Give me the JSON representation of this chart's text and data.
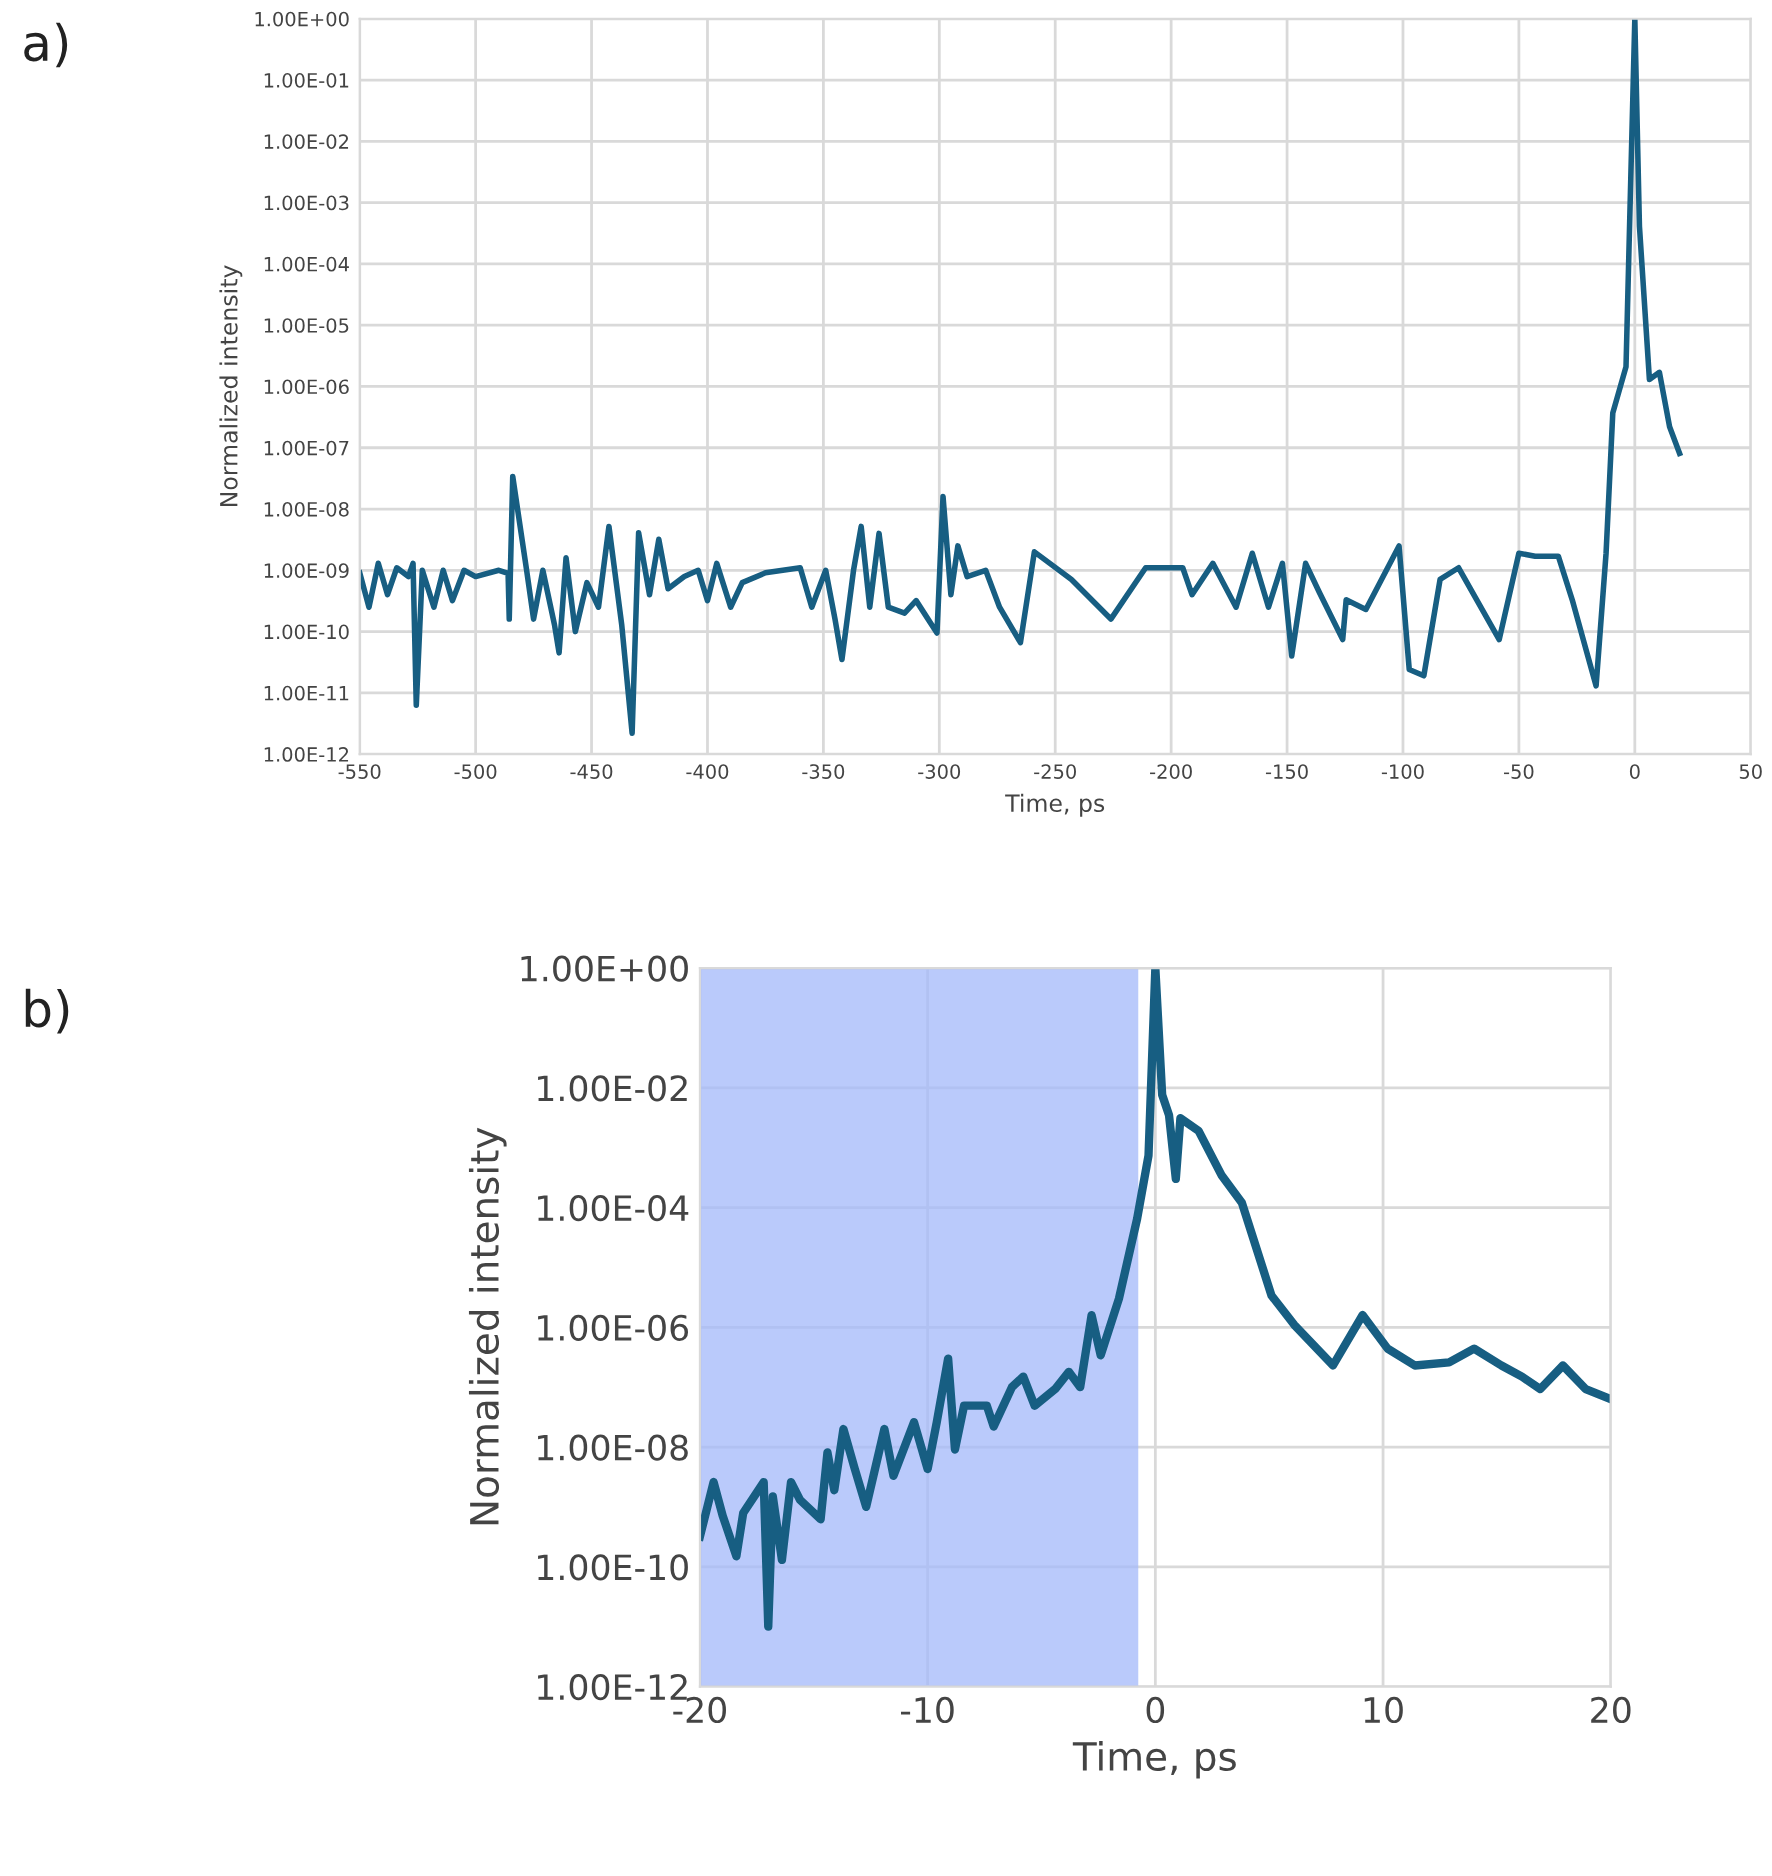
{
  "chart_data": [
    {
      "type": "line",
      "xlabel": "Time, ps",
      "ylabel": "Normalized intensity",
      "annotations": [
        "a)"
      ],
      "log": "y",
      "grid": true,
      "legend": false,
      "marker": "none",
      "line_style": "solid",
      "xlim": [
        -550,
        50
      ],
      "xticks": [
        -550,
        -500,
        -450,
        -400,
        -350,
        -300,
        -250,
        -200,
        -150,
        -100,
        -50,
        0,
        50
      ],
      "ylim": [
        1e-12,
        1
      ],
      "yticks": [
        {
          "value": 1,
          "label": "1.00E+00"
        },
        {
          "value": 0.1,
          "label": "1.00E-01"
        },
        {
          "value": 0.01,
          "label": "1.00E-02"
        },
        {
          "value": 0.001,
          "label": "1.00E-03"
        },
        {
          "value": 0.0001,
          "label": "1.00E-04"
        },
        {
          "value": 1e-05,
          "label": "1.00E-05"
        },
        {
          "value": 1e-06,
          "label": "1.00E-06"
        },
        {
          "value": 1e-07,
          "label": "1.00E-07"
        },
        {
          "value": 1e-08,
          "label": "1.00E-08"
        },
        {
          "value": 1e-09,
          "label": "1.00E-09"
        },
        {
          "value": 1e-10,
          "label": "1.00E-10"
        },
        {
          "value": 1e-11,
          "label": "1.00E-11"
        },
        {
          "value": 1e-12,
          "label": "1.00E-12"
        }
      ],
      "series": [
        {
          "color": "#175e82",
          "x": [
            -550,
            -546,
            -542,
            -538,
            -534,
            -529,
            -527,
            -525.6,
            -523,
            -518,
            -514,
            -510,
            -505,
            -500,
            -490,
            -486,
            -485.5,
            -484,
            -478,
            -475,
            -471,
            -466,
            -464,
            -461,
            -457,
            -452,
            -447,
            -442.5,
            -437,
            -432.5,
            -429.7,
            -425,
            -421,
            -417,
            -410,
            -404,
            -400,
            -396,
            -390,
            -385,
            -375,
            -360,
            -355,
            -349,
            -345,
            -342,
            -337,
            -333.7,
            -330,
            -326,
            -322,
            -315,
            -310,
            -301,
            -298.4,
            -295,
            -292,
            -288,
            -280,
            -274,
            -265,
            -259,
            -243,
            -226,
            -211,
            -195,
            -191,
            -182,
            -172,
            -165,
            -158,
            -152,
            -148,
            -142,
            -136,
            -126,
            -124.5,
            -116,
            -101.7,
            -97.3,
            -91,
            -84,
            -76,
            -58.5,
            -50,
            -43,
            -33,
            -27,
            -16.7,
            -12.4,
            -9.5,
            -3.8,
            0,
            2,
            6.3,
            10.6,
            15,
            19.3
          ],
          "values": [
            9.1e-10,
            2.5e-10,
            1.3e-09,
            4e-10,
            1.1e-09,
            7.9e-10,
            1.3e-09,
            6.3e-12,
            1e-09,
            2.5e-10,
            1e-09,
            3.2e-10,
            1e-09,
            7.9e-10,
            1e-09,
            8.9e-10,
            1.6e-10,
            3.4e-08,
            1e-09,
            1.6e-10,
            1e-09,
            1.3e-10,
            4.5e-11,
            1.6e-09,
            1e-10,
            6.3e-10,
            2.5e-10,
            5.2e-09,
            1.3e-10,
            2.2e-12,
            4.1e-09,
            4e-10,
            3.2e-09,
            5e-10,
            7.9e-10,
            1e-09,
            3.2e-10,
            1.3e-09,
            2.5e-10,
            6.3e-10,
            9.1e-10,
            1.1e-09,
            2.5e-10,
            1e-09,
            1.6e-10,
            3.5e-11,
            1e-09,
            5.2e-09,
            2.5e-10,
            4e-09,
            2.5e-10,
            2e-10,
            3.2e-10,
            9.5e-11,
            1.6e-08,
            4e-10,
            2.5e-09,
            7.9e-10,
            1e-09,
            2.5e-10,
            6.6e-11,
            2e-09,
            7.1e-10,
            1.6e-10,
            1.1e-09,
            1.1e-09,
            4e-10,
            1.3e-09,
            2.5e-10,
            1.9e-09,
            2.5e-10,
            1.3e-09,
            4e-11,
            1.3e-09,
            4.3e-10,
            7.4e-11,
            3.3e-10,
            2.3e-10,
            2.5e-09,
            2.4e-11,
            1.9e-11,
            7.1e-10,
            1.1e-09,
            7.4e-11,
            1.9e-09,
            1.7e-09,
            1.7e-09,
            3.3e-10,
            1.3e-11,
            1.9e-09,
            3.7e-07,
            2.1e-06,
            1,
            0.00041,
            1.3e-06,
            1.7e-06,
            2.2e-07,
            8.1e-08
          ]
        }
      ]
    },
    {
      "type": "line",
      "xlabel": "Time, ps",
      "ylabel": "Normalized intensity",
      "annotations": [
        "b)"
      ],
      "log": "y",
      "grid": true,
      "legend": false,
      "marker": "none",
      "line_style": "solid",
      "xlim": [
        -20,
        20
      ],
      "xticks": [
        -20,
        -10,
        0,
        10,
        20
      ],
      "ylim": [
        1e-12,
        1
      ],
      "yticks": [
        {
          "value": 1,
          "label": "1.00E+00"
        },
        {
          "value": 0.01,
          "label": "1.00E-02"
        },
        {
          "value": 0.0001,
          "label": "1.00E-04"
        },
        {
          "value": 1e-06,
          "label": "1.00E-06"
        },
        {
          "value": 1e-08,
          "label": "1.00E-08"
        },
        {
          "value": 1e-10,
          "label": "1.00E-10"
        },
        {
          "value": 1e-12,
          "label": "1.00E-12"
        }
      ],
      "bands": [
        {
          "axis": "x",
          "from": -20,
          "to": -0.75,
          "color": "#a3b8fa"
        }
      ],
      "series": [
        {
          "color": "#175e82",
          "x": [
            -20,
            -19.4,
            -19.0,
            -18.4,
            -18.1,
            -17.2,
            -17.0,
            -16.8,
            -16.4,
            -16.0,
            -15.6,
            -14.7,
            -14.4,
            -14.1,
            -13.7,
            -13.2,
            -12.7,
            -11.9,
            -11.5,
            -10.6,
            -10.0,
            -9.6,
            -9.1,
            -8.8,
            -8.4,
            -7.4,
            -7.1,
            -6.3,
            -5.8,
            -5.3,
            -4.4,
            -3.8,
            -3.3,
            -2.8,
            -2.4,
            -1.6,
            -0.8,
            -0.3,
            0.0,
            0.3,
            0.6,
            0.9,
            1.1,
            1.9,
            2.9,
            3.8,
            5.1,
            6.1,
            7.8,
            9.1,
            10.2,
            11.4,
            12.9,
            14.0,
            15.2,
            16.1,
            16.9,
            17.9,
            18.9,
            20.0
          ],
          "values": [
            3.2e-10,
            2.6e-09,
            7.1e-10,
            1.5e-10,
            7.9e-10,
            2.6e-09,
            1e-11,
            1.5e-09,
            1.3e-10,
            2.6e-09,
            1.3e-09,
            6.2e-10,
            8.1e-09,
            1.9e-09,
            2e-08,
            4.3e-09,
            1e-09,
            2e-08,
            3.3e-09,
            2.6e-08,
            4.3e-09,
            2.6e-08,
            3e-07,
            9.1e-09,
            4.9e-08,
            4.9e-08,
            2.2e-08,
            1e-07,
            1.5e-07,
            4.9e-08,
            9.3e-08,
            1.8e-07,
            1e-07,
            1.6e-06,
            3.4e-07,
            3e-06,
            6.5e-05,
            0.00074,
            1,
            0.0076,
            0.0035,
            0.0003,
            0.0031,
            0.0019,
            0.00035,
            0.00012,
            3.4e-06,
            1.1e-06,
            2.3e-07,
            1.6e-06,
            4.4e-07,
            2.3e-07,
            2.6e-07,
            4.4e-07,
            2.3e-07,
            1.5e-07,
            9.3e-08,
            2.3e-07,
            9.3e-08,
            6.3e-08
          ]
        }
      ]
    }
  ]
}
